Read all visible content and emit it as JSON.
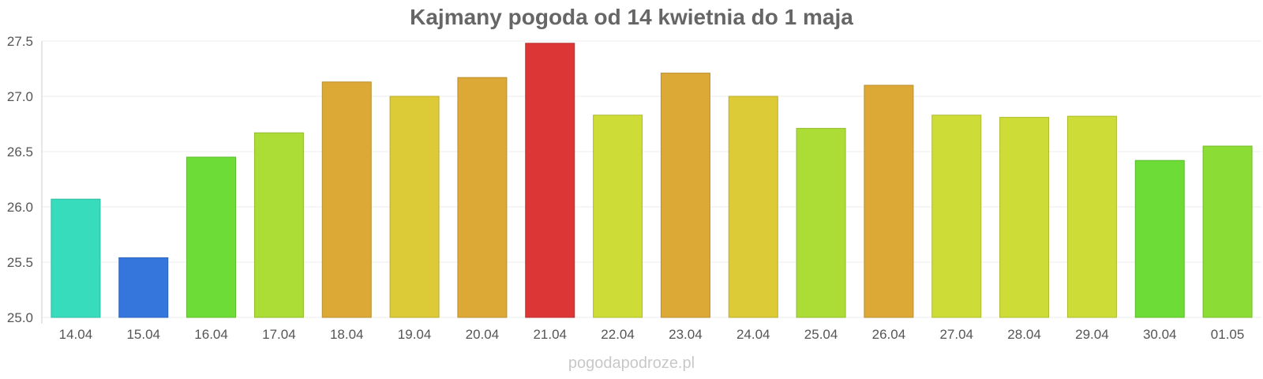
{
  "chart_data": {
    "type": "bar",
    "title": "Kajmany pogoda od 14 kwietnia do 1 maja",
    "xlabel": "",
    "ylabel": "",
    "categories": [
      "14.04",
      "15.04",
      "16.04",
      "17.04",
      "18.04",
      "19.04",
      "20.04",
      "21.04",
      "22.04",
      "23.04",
      "24.04",
      "25.04",
      "26.04",
      "27.04",
      "28.04",
      "29.04",
      "30.04",
      "01.05"
    ],
    "values": [
      26.07,
      25.54,
      26.45,
      26.67,
      27.13,
      27.0,
      27.17,
      27.48,
      26.83,
      27.21,
      27.0,
      26.71,
      27.1,
      26.83,
      26.81,
      26.82,
      26.42,
      26.55
    ],
    "colors": [
      "#36dcbc",
      "#3476dc",
      "#6ddc36",
      "#acdc36",
      "#dca836",
      "#dcca36",
      "#dca836",
      "#dc3636",
      "#cddc36",
      "#dca836",
      "#dcca36",
      "#acdc36",
      "#dca836",
      "#cddc36",
      "#cddc36",
      "#cddc36",
      "#6ddc36",
      "#8cdc36"
    ],
    "ylim": [
      25.0,
      27.5
    ],
    "yticks": [
      "25.0",
      "25.5",
      "26.0",
      "26.5",
      "27.0",
      "27.5"
    ],
    "grid": true,
    "legend": "none"
  },
  "watermark": "pogodapodroze.pl"
}
